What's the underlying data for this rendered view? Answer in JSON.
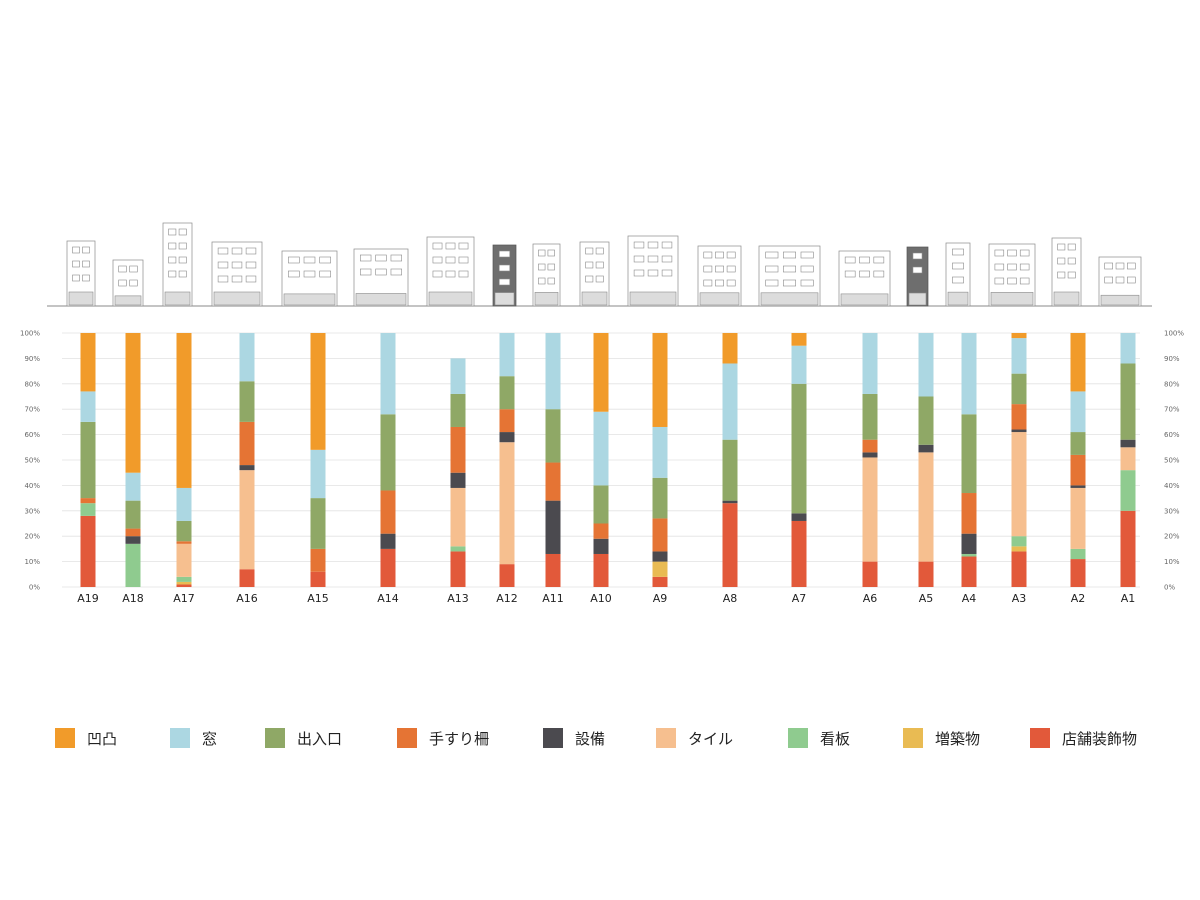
{
  "chart_data": {
    "type": "bar",
    "stacked": true,
    "normalized": true,
    "y_ticks": [
      "0%",
      "10%",
      "20%",
      "30%",
      "40%",
      "50%",
      "60%",
      "70%",
      "80%",
      "90%",
      "100%"
    ],
    "ylim": [
      0,
      100
    ],
    "grid": true,
    "legend_position": "bottom",
    "categories": [
      "A19",
      "A18",
      "A17",
      "A16",
      "A15",
      "A14",
      "A13",
      "A12",
      "A11",
      "A10",
      "A9",
      "A8",
      "A7",
      "A6",
      "A5",
      "A4",
      "A3",
      "A2",
      "A1"
    ],
    "series": [
      {
        "name": "店舗装飾物",
        "color": "#e2593a",
        "values": [
          28,
          0,
          1,
          7,
          6,
          15,
          14,
          9,
          13,
          13,
          4,
          33,
          26,
          10,
          10,
          12,
          14,
          11,
          30
        ]
      },
      {
        "name": "増築物",
        "color": "#e9bb53",
        "values": [
          0,
          0,
          1,
          0,
          0,
          0,
          0,
          0,
          0,
          0,
          6,
          0,
          0,
          0,
          0,
          0,
          2,
          0,
          0
        ]
      },
      {
        "name": "看板",
        "color": "#8fcb8f",
        "values": [
          5,
          17,
          2,
          0,
          0,
          0,
          2,
          0,
          0,
          0,
          0,
          0,
          0,
          0,
          0,
          1,
          4,
          4,
          16
        ]
      },
      {
        "name": "タイル",
        "color": "#f6bf8f",
        "values": [
          0,
          0,
          13,
          39,
          0,
          0,
          23,
          48,
          0,
          0,
          0,
          0,
          0,
          41,
          43,
          0,
          41,
          24,
          9
        ]
      },
      {
        "name": "設備",
        "color": "#4b4a4f",
        "values": [
          0,
          3,
          0,
          2,
          0,
          6,
          6,
          4,
          21,
          6,
          4,
          1,
          3,
          2,
          3,
          8,
          1,
          1,
          3
        ]
      },
      {
        "name": "手すり柵",
        "color": "#e57434",
        "values": [
          2,
          3,
          1,
          17,
          9,
          17,
          18,
          9,
          15,
          6,
          13,
          0,
          0,
          5,
          0,
          16,
          10,
          12,
          0
        ]
      },
      {
        "name": "出入口",
        "color": "#8fa866",
        "values": [
          30,
          11,
          8,
          16,
          20,
          30,
          13,
          13,
          21,
          15,
          16,
          24,
          51,
          18,
          19,
          31,
          12,
          9,
          30
        ]
      },
      {
        "name": "窓",
        "color": "#acd7e2",
        "values": [
          12,
          11,
          13,
          19,
          19,
          32,
          14,
          17,
          30,
          29,
          20,
          30,
          15,
          24,
          25,
          32,
          14,
          16,
          12
        ]
      },
      {
        "name": "凹凸",
        "color": "#f19b2a",
        "values": [
          23,
          55,
          61,
          0,
          46,
          0,
          0,
          0,
          0,
          31,
          37,
          12,
          5,
          0,
          0,
          0,
          2,
          23,
          0
        ]
      }
    ],
    "legend": [
      {
        "name": "凹凸",
        "color": "#f19b2a"
      },
      {
        "name": "窓",
        "color": "#acd7e2"
      },
      {
        "name": "出入口",
        "color": "#8fa866"
      },
      {
        "name": "手すり柵",
        "color": "#e57434"
      },
      {
        "name": "設備",
        "color": "#4b4a4f"
      },
      {
        "name": "タイル",
        "color": "#f6bf8f"
      },
      {
        "name": "看板",
        "color": "#8fcb8f"
      },
      {
        "name": "増築物",
        "color": "#e9bb53"
      },
      {
        "name": "店舗装飾物",
        "color": "#e2593a"
      }
    ]
  }
}
